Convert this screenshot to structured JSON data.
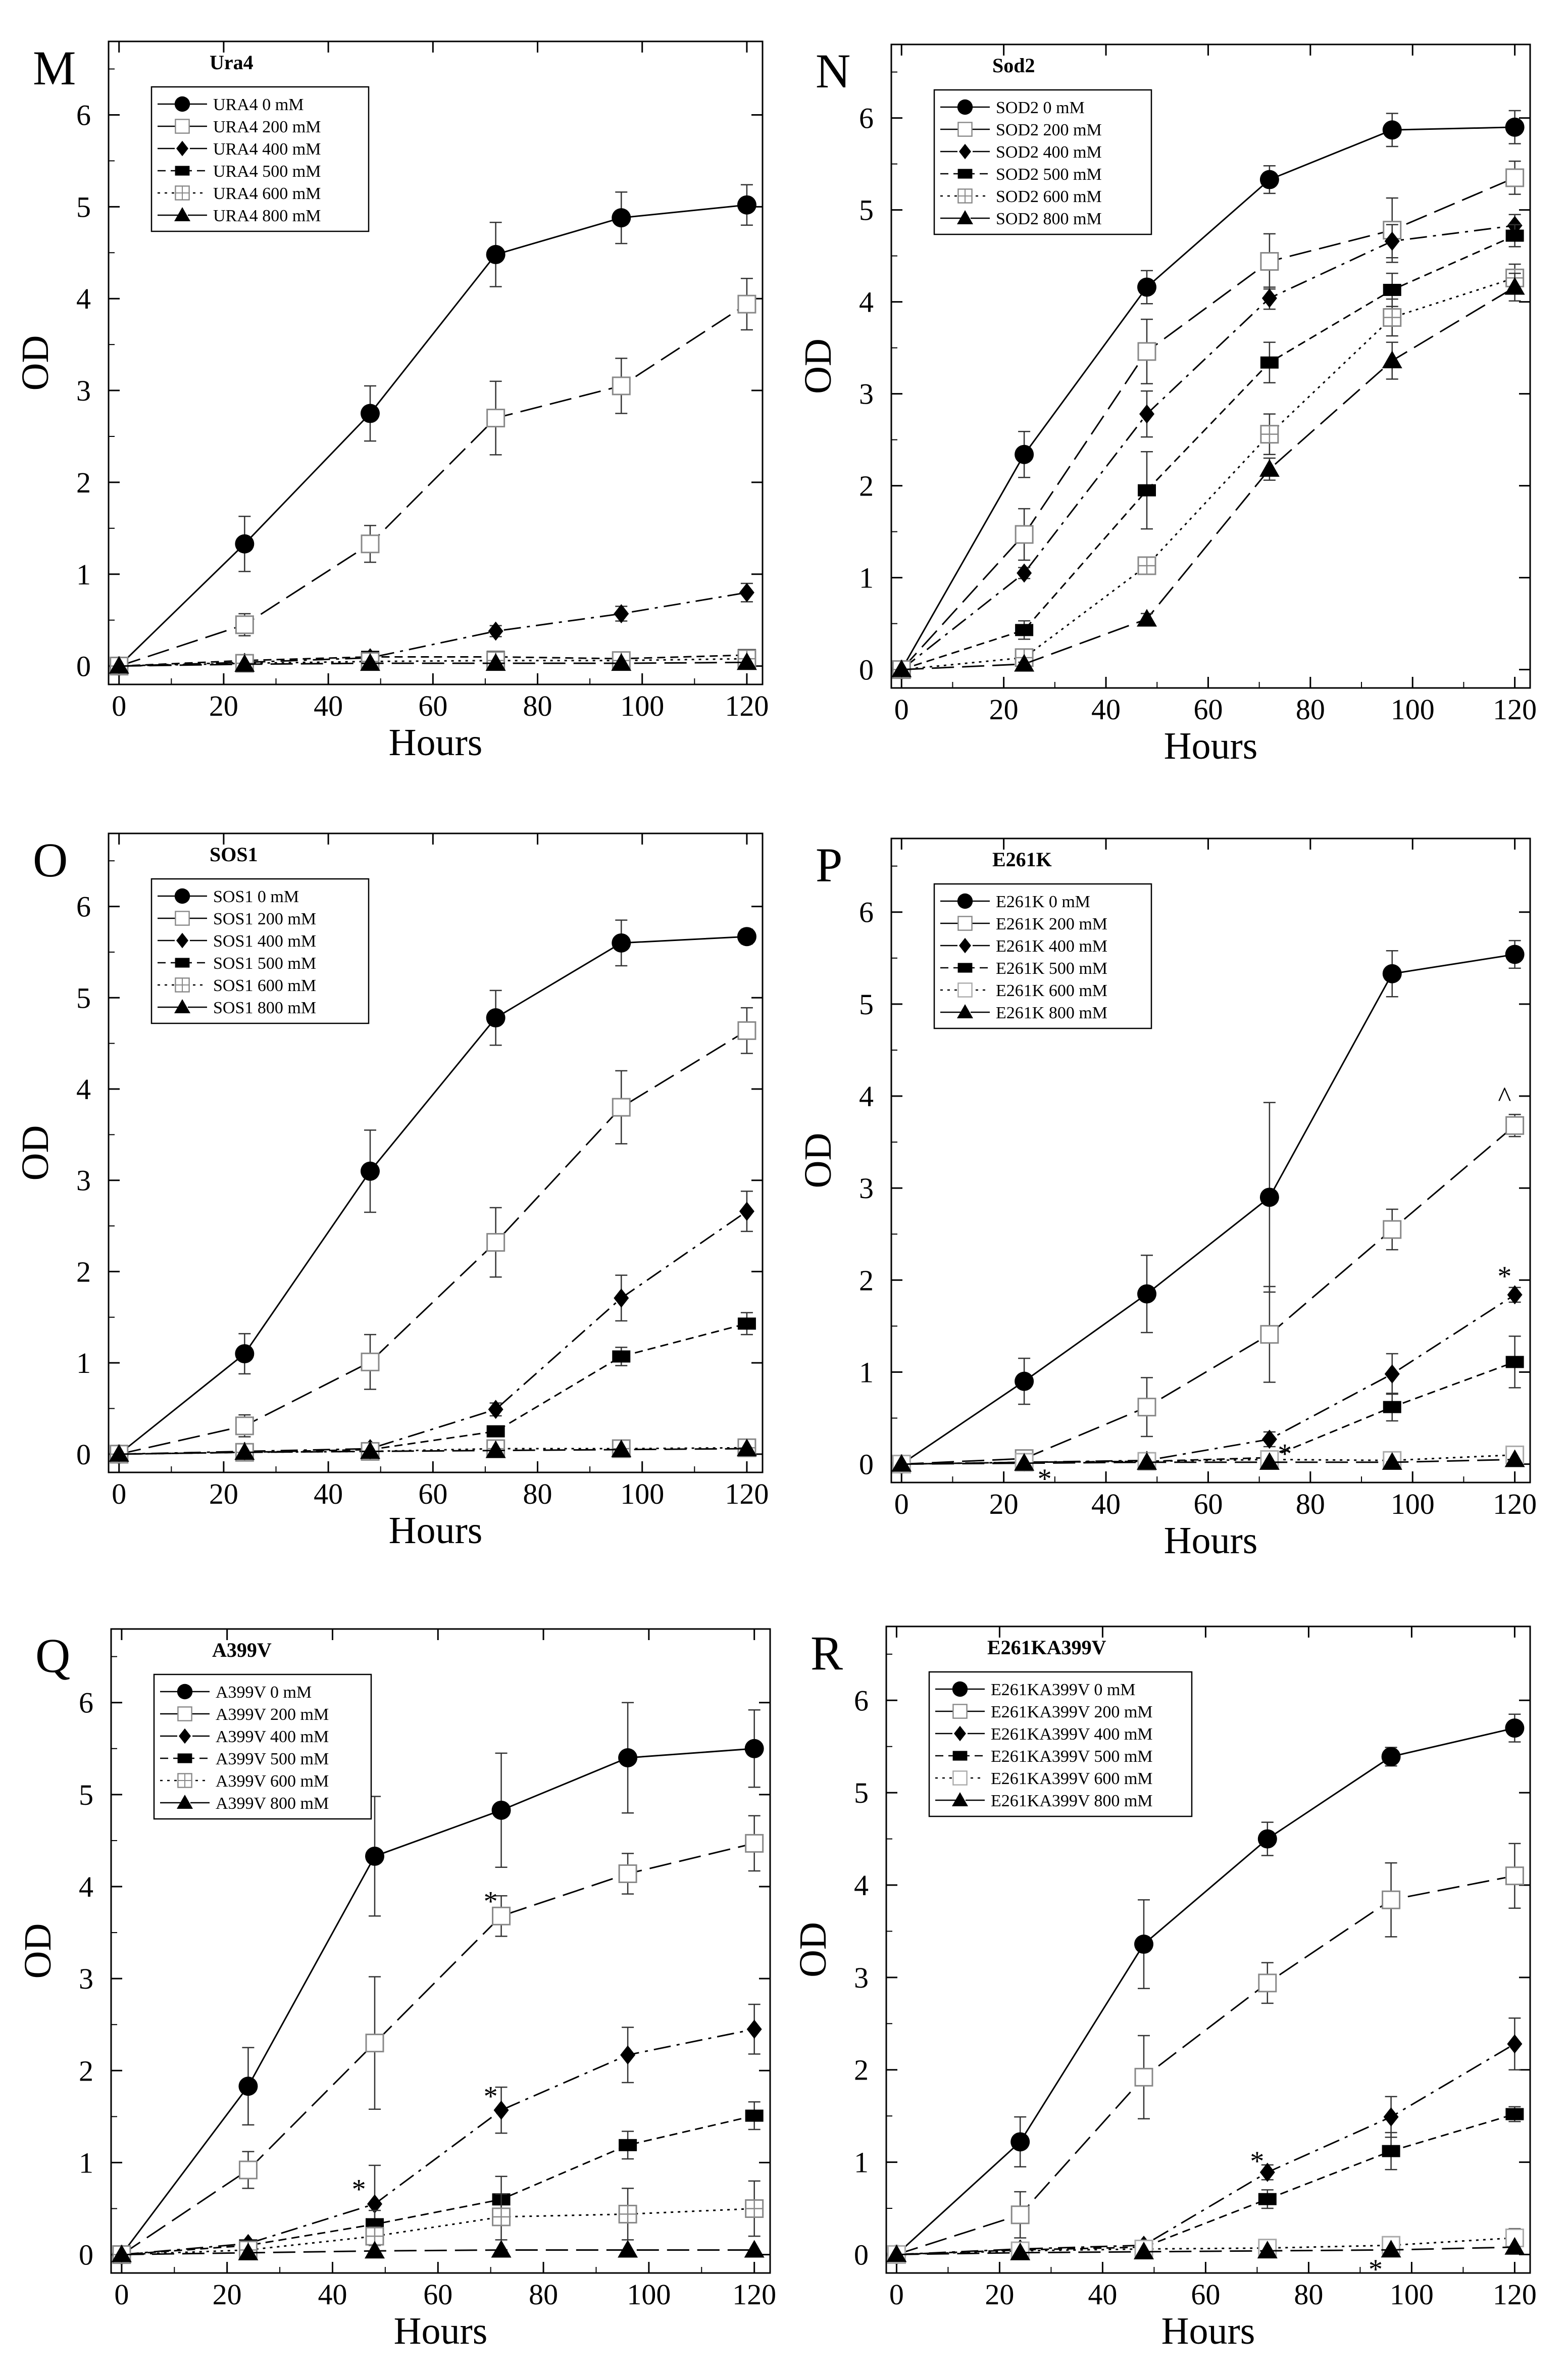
{
  "figure": {
    "x_ticks": [
      0,
      20,
      40,
      60,
      80,
      100,
      120
    ],
    "y_ticks": [
      0,
      1,
      2,
      3,
      4,
      5,
      6
    ]
  },
  "chart_data": [
    {
      "letter": "M",
      "title": "Ura4",
      "type": "line",
      "xlabel": "Hours",
      "ylabel": "OD",
      "xlim": [
        -2,
        123
      ],
      "ylim": [
        -0.2,
        6.8
      ],
      "x": [
        0,
        24,
        48,
        72,
        96,
        120
      ],
      "series": [
        {
          "name": "URA4 0 mM",
          "marker": "circle",
          "dash": "solid",
          "values": [
            0,
            1.33,
            2.75,
            4.48,
            4.88,
            5.02
          ],
          "errors": [
            0,
            0.3,
            0.3,
            0.35,
            0.28,
            0.22
          ]
        },
        {
          "name": "URA4 200 mM",
          "marker": "open-square",
          "dash": "longdash",
          "values": [
            0,
            0.45,
            1.33,
            2.7,
            3.05,
            3.94
          ],
          "errors": [
            0,
            0.12,
            0.2,
            0.4,
            0.3,
            0.28
          ]
        },
        {
          "name": "URA4 400 mM",
          "marker": "diamond",
          "dash": "dashdot",
          "values": [
            0,
            0.04,
            0.09,
            0.38,
            0.57,
            0.8
          ],
          "errors": [
            0,
            0,
            0,
            0.06,
            0.08,
            0.1
          ]
        },
        {
          "name": "URA4 500 mM",
          "marker": "filled-rect",
          "dash": "shortdash",
          "values": [
            0,
            0.06,
            0.1,
            0.1,
            0.08,
            0.12
          ],
          "errors": [
            0,
            0,
            0,
            0,
            0,
            0
          ]
        },
        {
          "name": "URA4 600 mM",
          "marker": "crossed-square",
          "dash": "dotted",
          "values": [
            0,
            0.03,
            0.05,
            0.06,
            0.06,
            0.08
          ],
          "errors": [
            0,
            0,
            0,
            0,
            0,
            0
          ]
        },
        {
          "name": "URA4 800 mM",
          "marker": "triangle",
          "dash": "longdash",
          "values": [
            0,
            0.02,
            0.03,
            0.03,
            0.03,
            0.04
          ],
          "errors": [
            0,
            0,
            0,
            0,
            0,
            0
          ]
        }
      ],
      "annotations": []
    },
    {
      "letter": "N",
      "title": "Sod2",
      "type": "line",
      "xlabel": "Hours",
      "ylabel": "OD",
      "xlim": [
        -2,
        123
      ],
      "ylim": [
        -0.2,
        6.8
      ],
      "x": [
        0,
        24,
        48,
        72,
        96,
        120
      ],
      "series": [
        {
          "name": "SOD2 0 mM",
          "marker": "circle",
          "dash": "solid",
          "values": [
            0,
            2.34,
            4.16,
            5.33,
            5.87,
            5.9
          ],
          "errors": [
            0,
            0.25,
            0.18,
            0.15,
            0.18,
            0.18
          ]
        },
        {
          "name": "SOD2 200 mM",
          "marker": "open-square",
          "dash": "longdash",
          "values": [
            0,
            1.47,
            3.46,
            4.44,
            4.78,
            5.35
          ],
          "errors": [
            0,
            0.28,
            0.35,
            0.3,
            0.35,
            0.18
          ]
        },
        {
          "name": "SOD2 400 mM",
          "marker": "diamond",
          "dash": "dashdot",
          "values": [
            0,
            1.05,
            2.78,
            4.04,
            4.66,
            4.83
          ],
          "errors": [
            0,
            0.06,
            0.25,
            0.12,
            0.18,
            0.12
          ]
        },
        {
          "name": "SOD2 500 mM",
          "marker": "filled-rect",
          "dash": "shortdash",
          "values": [
            0,
            0.43,
            1.95,
            3.34,
            4.13,
            4.72
          ],
          "errors": [
            0,
            0.1,
            0.42,
            0.22,
            0.18,
            0.12
          ]
        },
        {
          "name": "SOD2 600 mM",
          "marker": "crossed-square",
          "dash": "dotted",
          "values": [
            0,
            0.13,
            1.13,
            2.56,
            3.83,
            4.26
          ],
          "errors": [
            0,
            0.04,
            0.08,
            0.22,
            0.2,
            0.15
          ]
        },
        {
          "name": "SOD2 800 mM",
          "marker": "triangle",
          "dash": "longdash",
          "values": [
            0,
            0.06,
            0.55,
            2.18,
            3.36,
            4.16
          ],
          "errors": [
            0,
            0.02,
            0.06,
            0.12,
            0.2,
            0.15
          ]
        }
      ],
      "annotations": []
    },
    {
      "letter": "O",
      "title": "SOS1",
      "type": "line",
      "xlabel": "Hours",
      "ylabel": "OD",
      "xlim": [
        -2,
        123
      ],
      "ylim": [
        -0.2,
        6.8
      ],
      "x": [
        0,
        24,
        48,
        72,
        96,
        120
      ],
      "series": [
        {
          "name": "SOS1 0 mM",
          "marker": "circle",
          "dash": "solid",
          "values": [
            0,
            1.1,
            3.1,
            4.78,
            5.6,
            5.67
          ],
          "errors": [
            0,
            0.22,
            0.45,
            0.3,
            0.25,
            0.08
          ]
        },
        {
          "name": "SOS1 200 mM",
          "marker": "open-square",
          "dash": "longdash",
          "values": [
            0,
            0.31,
            1.01,
            2.32,
            3.8,
            4.64
          ],
          "errors": [
            0,
            0.12,
            0.3,
            0.38,
            0.4,
            0.25
          ]
        },
        {
          "name": "SOS1 400 mM",
          "marker": "diamond",
          "dash": "dashdot",
          "values": [
            0,
            0.03,
            0.06,
            0.49,
            1.71,
            2.66
          ],
          "errors": [
            0,
            0,
            0,
            0.07,
            0.25,
            0.22
          ]
        },
        {
          "name": "SOS1 500 mM",
          "marker": "filled-rect",
          "dash": "shortdash",
          "values": [
            0,
            0.02,
            0.05,
            0.25,
            1.07,
            1.43
          ],
          "errors": [
            0,
            0,
            0,
            0.05,
            0.1,
            0.12
          ]
        },
        {
          "name": "SOS1 600 mM",
          "marker": "crossed-square",
          "dash": "dotted",
          "values": [
            0,
            0.02,
            0.03,
            0.06,
            0.06,
            0.07
          ],
          "errors": [
            0,
            0,
            0,
            0,
            0,
            0
          ]
        },
        {
          "name": "SOS1 800 mM",
          "marker": "triangle",
          "dash": "longdash",
          "values": [
            0,
            0.02,
            0.03,
            0.04,
            0.05,
            0.06
          ],
          "errors": [
            0,
            0,
            0,
            0,
            0,
            0
          ]
        }
      ],
      "annotations": []
    },
    {
      "letter": "P",
      "title": "E261K",
      "type": "line",
      "xlabel": "Hours",
      "ylabel": "OD",
      "xlim": [
        -2,
        123
      ],
      "ylim": [
        -0.2,
        6.8
      ],
      "x": [
        0,
        24,
        48,
        72,
        96,
        120
      ],
      "series": [
        {
          "name": "E261K 0 mM",
          "marker": "circle",
          "dash": "solid",
          "values": [
            0,
            0.9,
            1.85,
            2.9,
            5.33,
            5.54
          ],
          "errors": [
            0,
            0.25,
            0.42,
            1.03,
            0.25,
            0.15
          ]
        },
        {
          "name": "E261K 200 mM",
          "marker": "open-square",
          "dash": "longdash",
          "values": [
            0,
            0.06,
            0.62,
            1.41,
            2.55,
            3.68
          ],
          "errors": [
            0,
            0.04,
            0.32,
            0.52,
            0.22,
            0.12
          ]
        },
        {
          "name": "E261K 400 mM",
          "marker": "diamond",
          "dash": "dashdot",
          "values": [
            0,
            0.02,
            0.04,
            0.27,
            0.98,
            1.84
          ],
          "errors": [
            0,
            0,
            0,
            0.08,
            0.22,
            0.08
          ]
        },
        {
          "name": "E261K 500 mM",
          "marker": "filled-rect",
          "dash": "shortdash",
          "values": [
            0,
            0.02,
            0.03,
            0.07,
            0.62,
            1.11
          ],
          "errors": [
            0,
            0,
            0,
            0,
            0.15,
            0.28
          ]
        },
        {
          "name": "E261K 600 mM",
          "marker": "open-square-gray",
          "dash": "dotted",
          "values": [
            0,
            0.02,
            0.03,
            0.05,
            0.04,
            0.1
          ],
          "errors": [
            0,
            0,
            0,
            0,
            0,
            0
          ]
        },
        {
          "name": "E261K 800 mM",
          "marker": "triangle",
          "dash": "longdash",
          "values": [
            0,
            0.01,
            0.02,
            0.02,
            0.02,
            0.05
          ],
          "errors": [
            0,
            0,
            0,
            0,
            0,
            0
          ]
        }
      ],
      "annotations": [
        {
          "text": "^",
          "x": 118,
          "y": 4.0
        },
        {
          "text": "*",
          "x": 118,
          "y": 2.05
        },
        {
          "text": "*",
          "x": 75,
          "y": 0.12
        },
        {
          "text": "*",
          "x": 28,
          "y": -0.15
        }
      ]
    },
    {
      "letter": "Q",
      "title": "A399V",
      "type": "line",
      "xlabel": "Hours",
      "ylabel": "OD",
      "xlim": [
        -2,
        123
      ],
      "ylim": [
        -0.2,
        6.8
      ],
      "x": [
        0,
        24,
        48,
        72,
        96,
        120
      ],
      "series": [
        {
          "name": "A399V 0 mM",
          "marker": "circle",
          "dash": "solid",
          "values": [
            0,
            1.83,
            4.33,
            4.83,
            5.4,
            5.5
          ],
          "errors": [
            0,
            0.42,
            0.65,
            0.62,
            0.6,
            0.42
          ]
        },
        {
          "name": "A399V 200 mM",
          "marker": "open-square",
          "dash": "longdash",
          "values": [
            0,
            0.92,
            2.3,
            3.68,
            4.14,
            4.47
          ],
          "errors": [
            0,
            0.2,
            0.72,
            0.22,
            0.22,
            0.3
          ]
        },
        {
          "name": "A399V 400 mM",
          "marker": "diamond",
          "dash": "dashdot",
          "values": [
            0,
            0.12,
            0.55,
            1.57,
            2.17,
            2.45
          ],
          "errors": [
            0,
            0.03,
            0.42,
            0.25,
            0.3,
            0.27
          ]
        },
        {
          "name": "A399V 500 mM",
          "marker": "filled-rect",
          "dash": "shortdash",
          "values": [
            0,
            0.1,
            0.33,
            0.6,
            1.19,
            1.51
          ],
          "errors": [
            0,
            0.02,
            0.15,
            0.25,
            0.15,
            0.15
          ]
        },
        {
          "name": "A399V 600 mM",
          "marker": "crossed-square",
          "dash": "dotted",
          "values": [
            0,
            0.05,
            0.2,
            0.41,
            0.44,
            0.5
          ],
          "errors": [
            0,
            0.02,
            0.1,
            0.25,
            0.28,
            0.3
          ]
        },
        {
          "name": "A399V 800 mM",
          "marker": "triangle",
          "dash": "longdash",
          "values": [
            0,
            0.02,
            0.04,
            0.05,
            0.05,
            0.05
          ],
          "errors": [
            0,
            0,
            0,
            0,
            0,
            0
          ]
        }
      ],
      "annotations": [
        {
          "text": "*",
          "x": 45,
          "y": 0.72
        },
        {
          "text": "*",
          "x": 70,
          "y": 3.85
        },
        {
          "text": "*",
          "x": 70,
          "y": 1.73
        }
      ]
    },
    {
      "letter": "R",
      "title": "E261KA399V",
      "type": "line",
      "xlabel": "Hours",
      "ylabel": "OD",
      "xlim": [
        -2,
        123
      ],
      "ylim": [
        -0.2,
        6.8
      ],
      "x": [
        0,
        24,
        48,
        72,
        96,
        120
      ],
      "series": [
        {
          "name": "E261KA399V 0 mM",
          "marker": "circle",
          "dash": "solid",
          "values": [
            0,
            1.22,
            3.36,
            4.5,
            5.39,
            5.7
          ],
          "errors": [
            0,
            0.27,
            0.48,
            0.18,
            0.1,
            0.15
          ]
        },
        {
          "name": "E261KA399V 200 mM",
          "marker": "open-square",
          "dash": "longdash",
          "values": [
            0,
            0.43,
            1.92,
            2.94,
            3.84,
            4.1
          ],
          "errors": [
            0,
            0.25,
            0.45,
            0.22,
            0.4,
            0.35
          ]
        },
        {
          "name": "E261KA399V 400 mM",
          "marker": "diamond",
          "dash": "dashdot",
          "values": [
            0,
            0.06,
            0.1,
            0.89,
            1.49,
            2.28
          ],
          "errors": [
            0,
            0,
            0,
            0.08,
            0.22,
            0.28
          ]
        },
        {
          "name": "E261KA399V 500 mM",
          "marker": "filled-rect",
          "dash": "shortdash",
          "values": [
            0,
            0.05,
            0.08,
            0.6,
            1.12,
            1.52
          ],
          "errors": [
            0,
            0,
            0,
            0.1,
            0.2,
            0.08
          ]
        },
        {
          "name": "E261KA399V 600 mM",
          "marker": "open-square-gray",
          "dash": "dotted",
          "values": [
            0,
            0.04,
            0.06,
            0.07,
            0.1,
            0.18
          ],
          "errors": [
            0,
            0,
            0,
            0,
            0.05,
            0.1
          ]
        },
        {
          "name": "E261KA399V 800 mM",
          "marker": "triangle",
          "dash": "longdash",
          "values": [
            0,
            0.02,
            0.03,
            0.04,
            0.05,
            0.08
          ],
          "errors": [
            0,
            0,
            0,
            0,
            0,
            0
          ]
        }
      ],
      "annotations": [
        {
          "text": "*",
          "x": 70,
          "y": 1.02
        },
        {
          "text": "*",
          "x": 93,
          "y": -0.15
        }
      ]
    }
  ]
}
